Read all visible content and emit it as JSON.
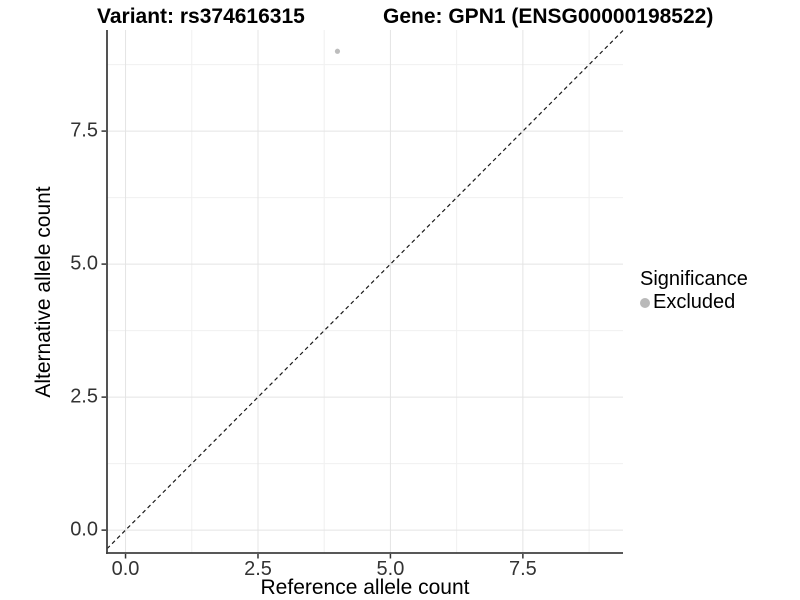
{
  "header": {
    "variant_title": "Variant: rs374616315",
    "gene_title": "Gene: GPN1 (ENSG00000198522)"
  },
  "chart_data": {
    "type": "scatter",
    "xlabel": "Reference allele count",
    "ylabel": "Alternative allele count",
    "x_ticks": [
      0,
      2.5,
      5,
      7.5
    ],
    "x_tick_labels": [
      "0.0",
      "2.5",
      "5.0",
      "7.5"
    ],
    "y_ticks": [
      0,
      2.5,
      5,
      7.5
    ],
    "y_tick_labels": [
      "0.0",
      "2.5",
      "5.0",
      "7.5"
    ],
    "x_minor_ticks": [
      1.25,
      3.75,
      6.25,
      8.75
    ],
    "y_minor_ticks": [
      1.25,
      3.75,
      6.25,
      8.75
    ],
    "xlim": [
      -0.35,
      9.39
    ],
    "ylim": [
      -0.43,
      9.4
    ],
    "grid": true,
    "points": [
      {
        "x": 4,
        "y": 9,
        "series": "Excluded"
      }
    ],
    "reference_line": {
      "kind": "identity",
      "slope": 1,
      "intercept": 0,
      "style": "dashed"
    },
    "legend": {
      "position": "right",
      "title": "Significance",
      "entries": [
        {
          "label": "Excluded",
          "color": "#b9b9b9"
        }
      ]
    },
    "style": {
      "point_color": "#bdbdbd",
      "point_radius": 2.6,
      "axis_line_color": "#404040",
      "tick_mark_color": "#333333",
      "grid_major_color": "#e4e4e4",
      "grid_minor_color": "#f0f0f0",
      "reference_line_color": "#1a1a1a",
      "background": "#ffffff"
    }
  }
}
